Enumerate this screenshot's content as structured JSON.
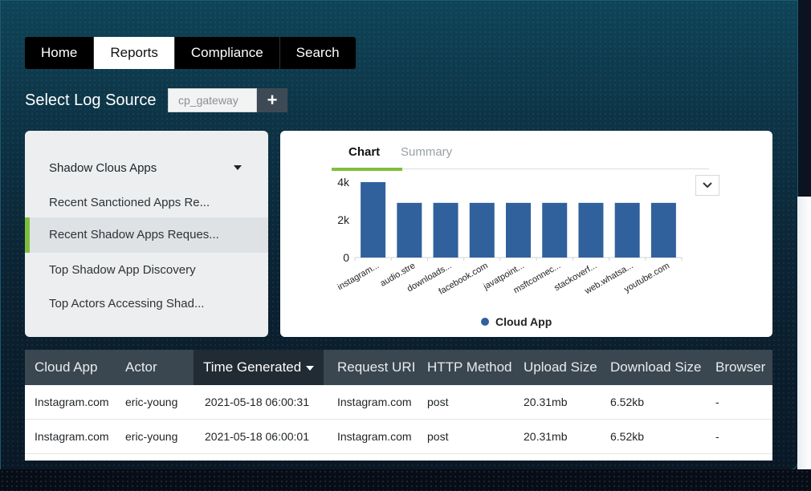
{
  "nav": {
    "items": [
      {
        "label": "Home",
        "active": false
      },
      {
        "label": "Reports",
        "active": true
      },
      {
        "label": "Compliance",
        "active": false
      },
      {
        "label": "Search",
        "active": false
      }
    ]
  },
  "log_source": {
    "label": "Select Log Source",
    "value": "cp_gateway",
    "add_label": "+"
  },
  "sidebar": {
    "dropdown_label": "Shadow Clous Apps",
    "items": [
      {
        "label": "Recent Sanctioned Apps Re...",
        "active": false
      },
      {
        "label": "Recent Shadow Apps Reques...",
        "active": true
      },
      {
        "label": "Top Shadow App Discovery",
        "active": false
      },
      {
        "label": "Top Actors Accessing Shad...",
        "active": false
      }
    ]
  },
  "chart_panel": {
    "tabs": [
      {
        "label": "Chart",
        "active": true
      },
      {
        "label": "Summary",
        "active": false
      }
    ],
    "toggle_icon": "chevron-down-icon"
  },
  "chart_data": {
    "type": "bar",
    "categories": [
      "instagram...",
      "audio.stre",
      "downloads...",
      "facebook.com",
      "javatpoint...",
      "msftconnec...",
      "stackoverf...",
      "web.whatsa...",
      "youtube.com"
    ],
    "series": [
      {
        "name": "Cloud App",
        "color": "#30619d",
        "values": [
          4000,
          2900,
          2900,
          2900,
          2900,
          2900,
          2900,
          2900,
          2900
        ]
      }
    ],
    "ylim": [
      0,
      4000
    ],
    "yticks": [
      0,
      2000,
      4000
    ],
    "ytick_labels": [
      "0",
      "2k",
      "4k"
    ],
    "legend": "bottom-center",
    "grid": false
  },
  "table": {
    "columns": [
      {
        "label": "Cloud App",
        "sorted": false
      },
      {
        "label": "Actor",
        "sorted": false
      },
      {
        "label": "Time Generated",
        "sorted": true
      },
      {
        "label": "Request URI",
        "sorted": false
      },
      {
        "label": "HTTP Method",
        "sorted": false
      },
      {
        "label": "Upload Size",
        "sorted": false
      },
      {
        "label": "Download Size",
        "sorted": false
      },
      {
        "label": "Browser",
        "sorted": false
      }
    ],
    "rows": [
      [
        "Instagram.com",
        "eric-young",
        "2021-05-18 06:00:31",
        "Instagram.com",
        "post",
        "20.31mb",
        "6.52kb",
        "-"
      ],
      [
        "Instagram.com",
        "eric-young",
        "2021-05-18 06:00:01",
        "Instagram.com",
        "post",
        "20.31mb",
        "6.52kb",
        "-"
      ]
    ]
  }
}
